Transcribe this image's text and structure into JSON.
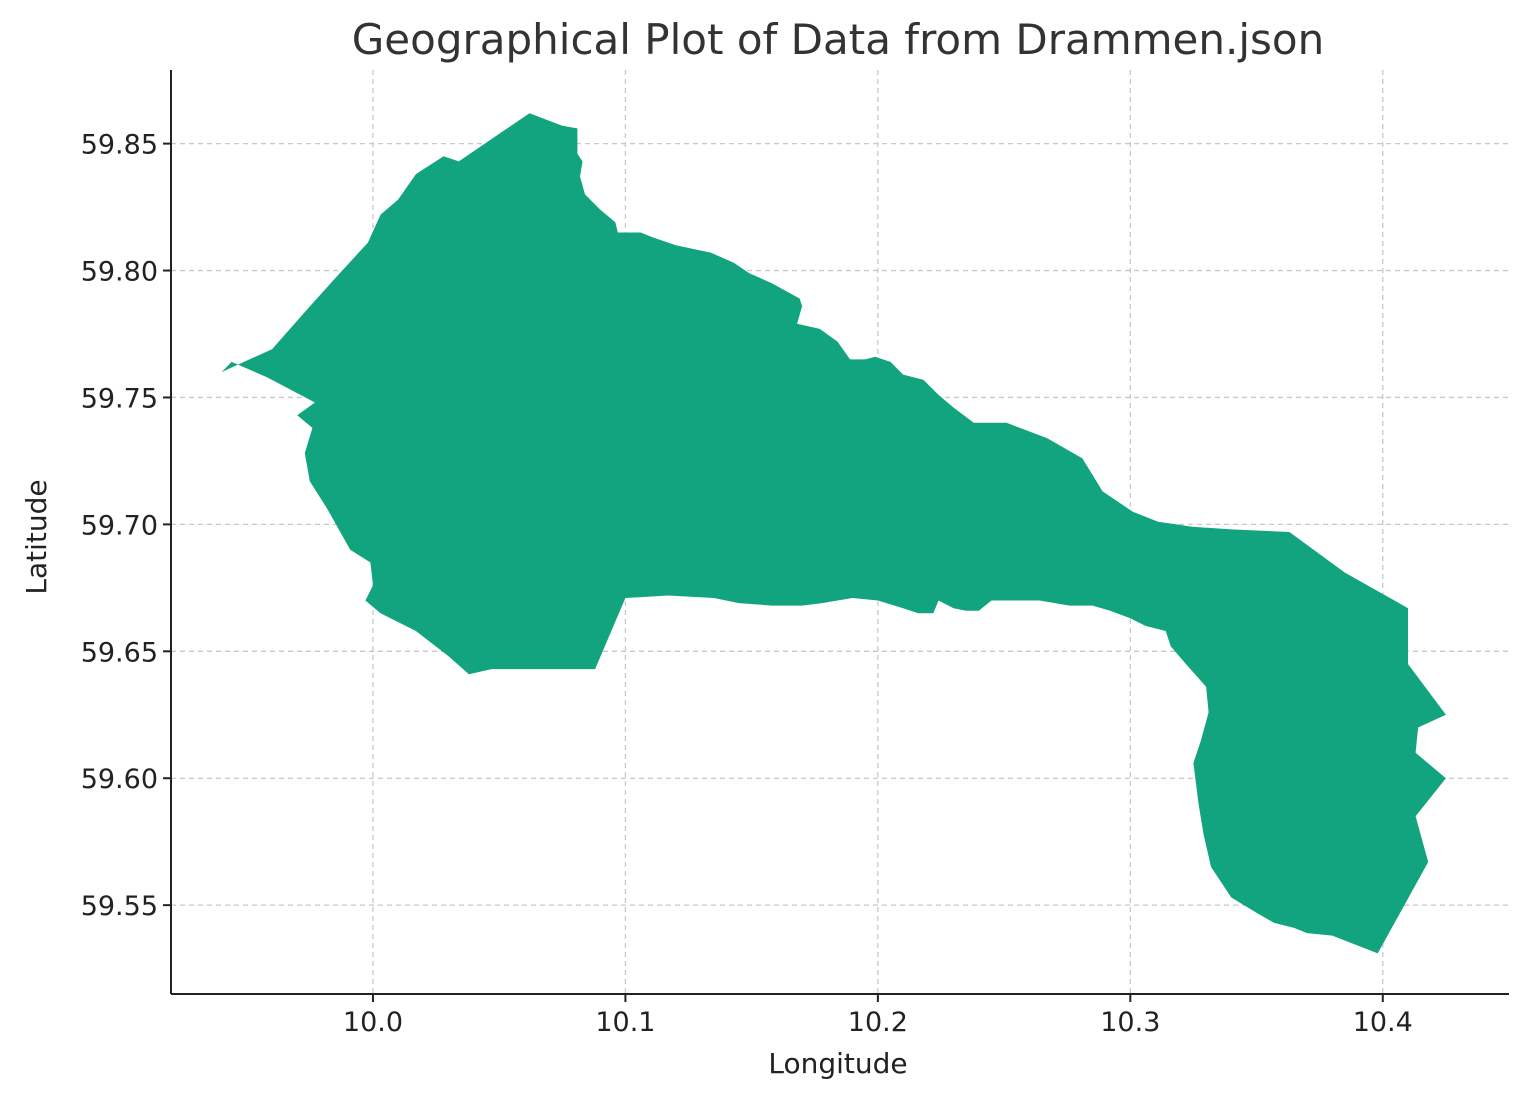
{
  "chart_data": {
    "type": "area",
    "title": "Geographical Plot of Data from Drammen.json",
    "xlabel": "Longitude",
    "ylabel": "Latitude",
    "xlim": [
      9.92,
      10.45
    ],
    "ylim": [
      59.515,
      59.879
    ],
    "x_ticks": [
      10.0,
      10.1,
      10.2,
      10.3,
      10.4
    ],
    "x_tick_labels": [
      "10.0",
      "10.1",
      "10.2",
      "10.3",
      "10.4"
    ],
    "y_ticks": [
      59.55,
      59.6,
      59.65,
      59.7,
      59.75,
      59.8,
      59.85
    ],
    "y_tick_labels": [
      "59.55",
      "59.60",
      "59.65",
      "59.70",
      "59.75",
      "59.80",
      "59.85"
    ],
    "grid": true,
    "colors": {
      "fill": "#12a47e",
      "grid": "#c8c8c8",
      "axis": "#222222",
      "title": "#333333"
    },
    "series": [
      {
        "polygon": [
          [
            10.062,
            59.862
          ],
          [
            10.075,
            59.857
          ],
          [
            10.081,
            59.856
          ],
          [
            10.081,
            59.846
          ],
          [
            10.083,
            59.843
          ],
          [
            10.082,
            59.837
          ],
          [
            10.084,
            59.83
          ],
          [
            10.09,
            59.824
          ],
          [
            10.096,
            59.819
          ],
          [
            10.097,
            59.815
          ],
          [
            10.106,
            59.815
          ],
          [
            10.111,
            59.813
          ],
          [
            10.12,
            59.81
          ],
          [
            10.134,
            59.807
          ],
          [
            10.143,
            59.803
          ],
          [
            10.149,
            59.799
          ],
          [
            10.158,
            59.795
          ],
          [
            10.169,
            59.789
          ],
          [
            10.17,
            59.786
          ],
          [
            10.168,
            59.779
          ],
          [
            10.177,
            59.777
          ],
          [
            10.184,
            59.772
          ],
          [
            10.189,
            59.765
          ],
          [
            10.195,
            59.765
          ],
          [
            10.199,
            59.766
          ],
          [
            10.205,
            59.764
          ],
          [
            10.21,
            59.759
          ],
          [
            10.218,
            59.757
          ],
          [
            10.224,
            59.751
          ],
          [
            10.23,
            59.746
          ],
          [
            10.238,
            59.74
          ],
          [
            10.251,
            59.74
          ],
          [
            10.267,
            59.734
          ],
          [
            10.281,
            59.726
          ],
          [
            10.289,
            59.713
          ],
          [
            10.301,
            59.705
          ],
          [
            10.311,
            59.701
          ],
          [
            10.325,
            59.699
          ],
          [
            10.341,
            59.698
          ],
          [
            10.363,
            59.697
          ],
          [
            10.385,
            59.681
          ],
          [
            10.41,
            59.667
          ],
          [
            10.41,
            59.645
          ],
          [
            10.425,
            59.625
          ],
          [
            10.414,
            59.62
          ],
          [
            10.413,
            59.61
          ],
          [
            10.425,
            59.6
          ],
          [
            10.413,
            59.585
          ],
          [
            10.418,
            59.567
          ],
          [
            10.398,
            59.531
          ],
          [
            10.38,
            59.538
          ],
          [
            10.37,
            59.539
          ],
          [
            10.365,
            59.541
          ],
          [
            10.357,
            59.543
          ],
          [
            10.35,
            59.547
          ],
          [
            10.34,
            59.553
          ],
          [
            10.332,
            59.565
          ],
          [
            10.329,
            59.578
          ],
          [
            10.327,
            59.59
          ],
          [
            10.325,
            59.606
          ],
          [
            10.328,
            59.615
          ],
          [
            10.331,
            59.626
          ],
          [
            10.33,
            59.636
          ],
          [
            10.322,
            59.645
          ],
          [
            10.316,
            59.652
          ],
          [
            10.314,
            59.658
          ],
          [
            10.306,
            59.66
          ],
          [
            10.3,
            59.663
          ],
          [
            10.292,
            59.666
          ],
          [
            10.285,
            59.668
          ],
          [
            10.276,
            59.668
          ],
          [
            10.264,
            59.67
          ],
          [
            10.256,
            59.67
          ],
          [
            10.245,
            59.67
          ],
          [
            10.24,
            59.666
          ],
          [
            10.235,
            59.666
          ],
          [
            10.23,
            59.667
          ],
          [
            10.224,
            59.67
          ],
          [
            10.222,
            59.665
          ],
          [
            10.216,
            59.665
          ],
          [
            10.21,
            59.667
          ],
          [
            10.2,
            59.67
          ],
          [
            10.19,
            59.671
          ],
          [
            10.184,
            59.67
          ],
          [
            10.178,
            59.669
          ],
          [
            10.17,
            59.668
          ],
          [
            10.158,
            59.668
          ],
          [
            10.145,
            59.669
          ],
          [
            10.135,
            59.671
          ],
          [
            10.117,
            59.672
          ],
          [
            10.1,
            59.671
          ],
          [
            10.088,
            59.643
          ],
          [
            10.065,
            59.643
          ],
          [
            10.047,
            59.643
          ],
          [
            10.038,
            59.641
          ],
          [
            10.03,
            59.648
          ],
          [
            10.017,
            59.658
          ],
          [
            10.003,
            59.665
          ],
          [
            9.997,
            59.67
          ],
          [
            10.0,
            59.676
          ],
          [
            9.999,
            59.685
          ],
          [
            9.991,
            59.69
          ],
          [
            9.982,
            59.706
          ],
          [
            9.975,
            59.717
          ],
          [
            9.973,
            59.728
          ],
          [
            9.976,
            59.738
          ],
          [
            9.97,
            59.743
          ],
          [
            9.977,
            59.748
          ],
          [
            9.958,
            59.758
          ],
          [
            9.944,
            59.764
          ],
          [
            9.94,
            59.76
          ],
          [
            9.96,
            59.769
          ],
          [
            9.976,
            59.787
          ],
          [
            9.986,
            59.798
          ],
          [
            9.998,
            59.811
          ],
          [
            10.003,
            59.822
          ],
          [
            10.01,
            59.828
          ],
          [
            10.017,
            59.838
          ],
          [
            10.028,
            59.845
          ],
          [
            10.034,
            59.843
          ]
        ]
      }
    ]
  }
}
